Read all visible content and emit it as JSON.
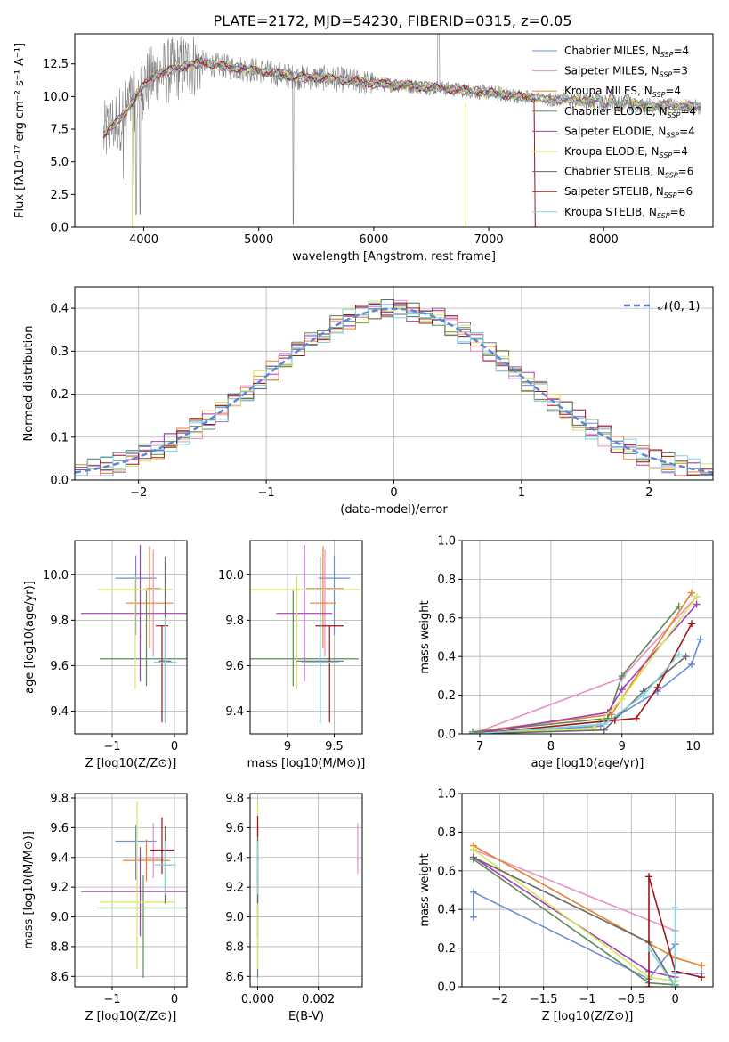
{
  "figure_title": "PLATE=2172, MJD=54230, FIBERID=0315, z=0.05",
  "series_colors": [
    "#6a8fd8",
    "#e98fc8",
    "#e8822b",
    "#5e8b5c",
    "#a23fb5",
    "#d4e85a",
    "#6a6a6a",
    "#a01616",
    "#7fd4dc"
  ],
  "data_color": "#7f7f7f",
  "gauss_color": "#5b86d6",
  "chart_data": [
    {
      "id": "spectrum",
      "type": "line",
      "xlabel": "wavelength [Angstrom, rest frame]",
      "ylabel": "Flux [fλ10⁻¹⁷ erg cm⁻² s⁻¹ A⁻¹]",
      "xlim": [
        3400,
        8950
      ],
      "ylim": [
        0,
        14.8
      ],
      "xticks": [
        4000,
        5000,
        6000,
        7000,
        8000
      ],
      "yticks": [
        0.0,
        2.5,
        5.0,
        7.5,
        10.0,
        12.5
      ],
      "grid": false,
      "legend": "top-right",
      "data_range": [
        3650,
        8850
      ],
      "model_ranges": [
        [
          3650,
          7400
        ],
        [
          3650,
          8850
        ],
        [
          3650,
          8850
        ],
        [
          3650,
          8850
        ],
        [
          3650,
          8850
        ],
        [
          3650,
          8850
        ],
        [
          3650,
          8850
        ],
        [
          3650,
          7400
        ],
        [
          3650,
          8850
        ]
      ],
      "continuum": [
        [
          3650,
          7.0
        ],
        [
          3700,
          7.6
        ],
        [
          3800,
          8.4
        ],
        [
          3900,
          9.6
        ],
        [
          4000,
          10.9
        ],
        [
          4100,
          11.6
        ],
        [
          4300,
          12.2
        ],
        [
          4500,
          12.6
        ],
        [
          4700,
          12.3
        ],
        [
          5000,
          12.0
        ],
        [
          5300,
          11.5
        ],
        [
          5600,
          11.4
        ],
        [
          6000,
          11.0
        ],
        [
          6500,
          10.7
        ],
        [
          7000,
          10.3
        ],
        [
          7500,
          9.8
        ],
        [
          8000,
          9.6
        ],
        [
          8300,
          9.4
        ],
        [
          8500,
          9.3
        ],
        [
          8850,
          9.2
        ]
      ],
      "series": [
        {
          "name": "Chabrier MILES, N_SSP=4"
        },
        {
          "name": "Salpeter MILES, N_SSP=3"
        },
        {
          "name": "Kroupa MILES, N_SSP=4"
        },
        {
          "name": "Chabrier ELODIE, N_SSP=4"
        },
        {
          "name": "Salpeter ELODIE, N_SSP=4"
        },
        {
          "name": "Kroupa ELODIE, N_SSP=4"
        },
        {
          "name": "Chabrier STELIB, N_SSP=6"
        },
        {
          "name": "Salpeter STELIB, N_SSP=6"
        },
        {
          "name": "Kroupa STELIB, N_SSP=6"
        }
      ]
    },
    {
      "id": "residuals",
      "type": "line",
      "xlabel": "(data-model)/error",
      "ylabel": "Normed distribution",
      "xlim": [
        -2.5,
        2.5
      ],
      "ylim": [
        0,
        0.45
      ],
      "xticks": [
        -2,
        -1,
        0,
        1,
        2
      ],
      "yticks": [
        0.0,
        0.1,
        0.2,
        0.3,
        0.4
      ],
      "grid": true,
      "legend": "top-right",
      "gauss_label": "𝒩(0, 1)",
      "bin_width": 0.1
    },
    {
      "id": "age_vs_Z",
      "type": "scatter",
      "xlabel": "Z [log10(Z/Z⊙)]",
      "ylabel": "age  [log10(age/yr)]",
      "xlim": [
        -1.6,
        0.2
      ],
      "ylim": [
        9.3,
        10.15
      ],
      "xticks": [
        -1,
        0
      ],
      "yticks": [
        9.4,
        9.6,
        9.8,
        10.0
      ],
      "grid": true,
      "points": [
        {
          "x": -0.62,
          "xerr": 0.33,
          "y": 9.985,
          "yerr_lo": 0.25,
          "yerr_hi": 0.1
        },
        {
          "x": -0.34,
          "xerr": 0.12,
          "y": 9.94,
          "yerr_lo": 0.3,
          "yerr_hi": 0.17
        },
        {
          "x": -0.4,
          "xerr": 0.38,
          "y": 9.875,
          "yerr_lo": 0.2,
          "yerr_hi": 0.25
        },
        {
          "x": -0.45,
          "xerr": 0.75,
          "y": 9.63,
          "yerr_lo": 0.12,
          "yerr_hi": 0.3
        },
        {
          "x": -0.55,
          "xerr": 0.95,
          "y": 9.83,
          "yerr_lo": 0.3,
          "yerr_hi": 0.3
        },
        {
          "x": -0.63,
          "xerr": 0.6,
          "y": 9.935,
          "yerr_lo": 0.44,
          "yerr_hi": 0.06
        },
        {
          "x": -0.15,
          "xerr": 0.1,
          "y": 9.62,
          "yerr_lo": 0.27,
          "yerr_hi": 0.46
        },
        {
          "x": -0.2,
          "xerr": 0.1,
          "y": 9.775,
          "yerr_lo": 0.425,
          "yerr_hi": 0.0
        },
        {
          "x": -0.15,
          "xerr": 0.18,
          "y": 9.615,
          "yerr_lo": 0.27,
          "yerr_hi": 0.2
        }
      ]
    },
    {
      "id": "age_vs_mass",
      "type": "scatter",
      "xlabel": "mass [log10(M/M⊙)]",
      "ylabel": "",
      "xlim": [
        8.6,
        9.8
      ],
      "ylim": [
        9.3,
        10.15
      ],
      "xticks": [
        9.0,
        9.5
      ],
      "yticks": [
        9.4,
        9.6,
        9.8,
        10.0
      ],
      "grid": true,
      "points": [
        {
          "x": 9.5,
          "xerr": 0.17,
          "y": 9.985,
          "yerr_lo": 0.25,
          "yerr_hi": 0.1
        },
        {
          "x": 9.4,
          "xerr": 0.2,
          "y": 9.94,
          "yerr_lo": 0.3,
          "yerr_hi": 0.17
        },
        {
          "x": 9.38,
          "xerr": 0.14,
          "y": 9.875,
          "yerr_lo": 0.2,
          "yerr_hi": 0.25
        },
        {
          "x": 9.06,
          "xerr": 0.7,
          "y": 9.63,
          "yerr_lo": 0.12,
          "yerr_hi": 0.3
        },
        {
          "x": 9.18,
          "xerr": 0.3,
          "y": 9.83,
          "yerr_lo": 0.3,
          "yerr_hi": 0.3
        },
        {
          "x": 9.1,
          "xerr": 0.68,
          "y": 9.935,
          "yerr_lo": 0.44,
          "yerr_hi": 0.06
        },
        {
          "x": 9.35,
          "xerr": 0.25,
          "y": 9.62,
          "yerr_lo": 0.27,
          "yerr_hi": 0.46
        },
        {
          "x": 9.45,
          "xerr": 0.15,
          "y": 9.775,
          "yerr_lo": 0.425,
          "yerr_hi": 0.0
        },
        {
          "x": 9.35,
          "xerr": 0.2,
          "y": 9.615,
          "yerr_lo": 0.27,
          "yerr_hi": 0.2
        }
      ]
    },
    {
      "id": "weight_vs_age",
      "type": "line",
      "xlabel": "age  [log10(age/yr)]",
      "ylabel": "mass weight",
      "xlim": [
        6.75,
        10.28
      ],
      "ylim": [
        0,
        1.0
      ],
      "xticks": [
        7,
        8,
        9,
        10
      ],
      "yticks": [
        0.0,
        0.2,
        0.4,
        0.6,
        0.8,
        1.0
      ],
      "grid": true,
      "series": [
        {
          "x": [
            6.9,
            8.7,
            9.5,
            9.98,
            10.1
          ],
          "y": [
            0.0,
            0.04,
            0.22,
            0.36,
            0.49
          ]
        },
        {
          "x": [
            6.9,
            9.0,
            10.05
          ],
          "y": [
            0.0,
            0.29,
            0.71
          ]
        },
        {
          "x": [
            6.9,
            8.85,
            9.98
          ],
          "y": [
            0.01,
            0.1,
            0.73
          ]
        },
        {
          "x": [
            6.9,
            8.8,
            9.0,
            9.8
          ],
          "y": [
            0.01,
            0.08,
            0.3,
            0.66
          ]
        },
        {
          "x": [
            6.9,
            8.8,
            9.0,
            10.05
          ],
          "y": [
            0.0,
            0.11,
            0.23,
            0.67
          ]
        },
        {
          "x": [
            6.9,
            8.6,
            9.0,
            10.05
          ],
          "y": [
            0.0,
            0.03,
            0.18,
            0.71
          ]
        },
        {
          "x": [
            6.9,
            8.75,
            9.3,
            9.9
          ],
          "y": [
            0.0,
            0.02,
            0.22,
            0.4
          ]
        },
        {
          "x": [
            6.9,
            8.9,
            9.2,
            9.5,
            9.98
          ],
          "y": [
            0.0,
            0.07,
            0.08,
            0.24,
            0.57
          ]
        },
        {
          "x": [
            6.9,
            8.75,
            9.3,
            9.8
          ],
          "y": [
            0.0,
            0.05,
            0.2,
            0.41
          ]
        }
      ]
    },
    {
      "id": "mass_vs_Z",
      "type": "scatter",
      "xlabel": "Z [log10(Z/Z⊙)]",
      "ylabel": "mass [log10(M/M⊙)]",
      "xlim": [
        -1.6,
        0.2
      ],
      "ylim": [
        8.53,
        9.83
      ],
      "xticks": [
        -1,
        0
      ],
      "yticks": [
        8.6,
        8.8,
        9.0,
        9.2,
        9.4,
        9.6,
        9.8
      ],
      "grid": true,
      "points": [
        {
          "x": -0.62,
          "xerr": 0.33,
          "y": 9.51,
          "yerr_lo": 0.26,
          "yerr_hi": 0.11
        },
        {
          "x": -0.34,
          "xerr": 0.12,
          "y": 9.4,
          "yerr_lo": 0.14,
          "yerr_hi": 0.23
        },
        {
          "x": -0.45,
          "xerr": 0.38,
          "y": 9.38,
          "yerr_lo": 0.14,
          "yerr_hi": 0.14
        },
        {
          "x": -0.5,
          "xerr": 0.75,
          "y": 9.06,
          "yerr_lo": 0.47,
          "yerr_hi": 0.22
        },
        {
          "x": -0.55,
          "xerr": 0.95,
          "y": 9.17,
          "yerr_lo": 0.3,
          "yerr_hi": 0.3
        },
        {
          "x": -0.6,
          "xerr": 0.6,
          "y": 9.1,
          "yerr_lo": 0.45,
          "yerr_hi": 0.68
        },
        {
          "x": -0.15,
          "xerr": 0.1,
          "y": 9.35,
          "yerr_lo": 0.26,
          "yerr_hi": 0.26
        },
        {
          "x": -0.2,
          "xerr": 0.2,
          "y": 9.45,
          "yerr_lo": 0.16,
          "yerr_hi": 0.22
        },
        {
          "x": -0.15,
          "xerr": 0.18,
          "y": 9.35,
          "yerr_lo": 0.2,
          "yerr_hi": 0.16
        }
      ]
    },
    {
      "id": "mass_vs_ebv",
      "type": "scatter",
      "xlabel": "E(B-V)",
      "ylabel": "",
      "xlim": [
        -0.00025,
        0.00345
      ],
      "ylim": [
        8.53,
        9.83
      ],
      "xticks": [
        0.0,
        0.002
      ],
      "xticklabels": [
        "0.000",
        "0.002"
      ],
      "yticks": [
        8.6,
        8.8,
        9.0,
        9.2,
        9.4,
        9.6,
        9.8
      ],
      "grid": true,
      "points": [
        {
          "x": 0.0,
          "xerr": 0.0,
          "y": 9.51,
          "yerr_lo": 0.26,
          "yerr_hi": 0.11
        },
        {
          "x": 0.0033,
          "xerr": 0.0,
          "y": 9.46,
          "yerr_lo": 0.17,
          "yerr_hi": 0.17
        },
        {
          "x": 0.0,
          "xerr": 0.0,
          "y": 9.38,
          "yerr_lo": 0.14,
          "yerr_hi": 0.14
        },
        {
          "x": 0.0,
          "xerr": 0.0,
          "y": 9.06,
          "yerr_lo": 0.47,
          "yerr_hi": 0.22
        },
        {
          "x": 0.0,
          "xerr": 0.0,
          "y": 9.17,
          "yerr_lo": 0.3,
          "yerr_hi": 0.3
        },
        {
          "x": 0.0,
          "xerr": 0.0,
          "y": 9.1,
          "yerr_lo": 0.45,
          "yerr_hi": 0.68
        },
        {
          "x": 0.0,
          "xerr": 0.0,
          "y": 9.35,
          "yerr_lo": 0.26,
          "yerr_hi": 0.26
        },
        {
          "x": 0.0,
          "xerr": 0.0,
          "y": 9.6,
          "yerr_lo": 0.06,
          "yerr_hi": 0.08
        },
        {
          "x": 0.0,
          "xerr": 0.0,
          "y": 9.35,
          "yerr_lo": 0.2,
          "yerr_hi": 0.16
        }
      ]
    },
    {
      "id": "weight_vs_Z",
      "type": "line",
      "xlabel": "Z [log10(Z/Z⊙)]",
      "ylabel": "mass weight",
      "xlim": [
        -2.43,
        0.43
      ],
      "ylim": [
        0,
        1.0
      ],
      "xticks": [
        -2.0,
        -1.5,
        -1.0,
        -0.5,
        0.0
      ],
      "yticks": [
        0.0,
        0.2,
        0.4,
        0.6,
        0.8,
        1.0
      ],
      "grid": true,
      "series": [
        {
          "x": [
            -2.3,
            -2.3,
            -0.3,
            0.0,
            0.0,
            0.3
          ],
          "y": [
            0.36,
            0.49,
            0.04,
            0.22,
            0.07,
            0.07
          ]
        },
        {
          "x": [
            -2.3,
            0.0
          ],
          "y": [
            0.71,
            0.29
          ]
        },
        {
          "x": [
            -2.3,
            0.0,
            0.3
          ],
          "y": [
            0.73,
            0.15,
            0.11
          ]
        },
        {
          "x": [
            -2.3,
            -0.3,
            0.0
          ],
          "y": [
            0.66,
            0.02,
            0.01
          ]
        },
        {
          "x": [
            -2.3,
            -0.3,
            0.0
          ],
          "y": [
            0.67,
            0.08,
            0.05
          ]
        },
        {
          "x": [
            -2.3,
            -0.3,
            0.0
          ],
          "y": [
            0.71,
            0.05,
            0.03
          ]
        },
        {
          "x": [
            -2.3,
            -0.3,
            0.0
          ],
          "y": [
            0.67,
            0.23,
            0.0
          ]
        },
        {
          "x": [
            -0.3,
            -0.3,
            0.0,
            0.3
          ],
          "y": [
            0.0,
            0.57,
            0.08,
            0.05
          ]
        },
        {
          "x": [
            -0.3,
            0.0,
            0.0
          ],
          "y": [
            0.2,
            0.0,
            0.41
          ]
        }
      ]
    }
  ]
}
